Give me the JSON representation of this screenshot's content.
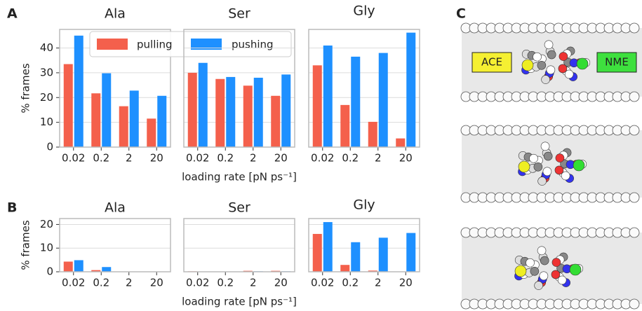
{
  "chart_data": [
    {
      "type": "bar",
      "panel": "A",
      "title": "Ala",
      "ylabel": "% frames",
      "categories": [
        "0.02",
        "0.2",
        "2",
        "20"
      ],
      "series": [
        {
          "name": "pulling",
          "color": "#f4604c",
          "values": [
            33.5,
            21.7,
            16.5,
            11.5
          ]
        },
        {
          "name": "pushing",
          "color": "#1e90ff",
          "values": [
            45,
            29.8,
            22.8,
            20.7
          ]
        }
      ],
      "ylim": [
        0,
        47.5
      ],
      "yticks": [
        0,
        10,
        20,
        30,
        40
      ],
      "grid": true,
      "legend": "upper center"
    },
    {
      "type": "bar",
      "title": "Ser",
      "xlabel": "loading rate [pN ps⁻¹]",
      "categories": [
        "0.02",
        "0.2",
        "2",
        "20"
      ],
      "series": [
        {
          "name": "pulling",
          "color": "#f4604c",
          "values": [
            30,
            27.5,
            24.8,
            20.7
          ]
        },
        {
          "name": "pushing",
          "color": "#1e90ff",
          "values": [
            34,
            28.3,
            28,
            29.3
          ]
        }
      ],
      "ylim": [
        0,
        47.5
      ],
      "yticks": [
        0,
        10,
        20,
        30,
        40
      ],
      "grid": true,
      "show_ytick_labels": false
    },
    {
      "type": "bar",
      "title": "Gly",
      "categories": [
        "0.02",
        "0.2",
        "2",
        "20"
      ],
      "series": [
        {
          "name": "pulling",
          "color": "#f4604c",
          "values": [
            33,
            17,
            10.2,
            3.5
          ]
        },
        {
          "name": "pushing",
          "color": "#1e90ff",
          "values": [
            41,
            36.5,
            38,
            46.2
          ]
        }
      ],
      "ylim": [
        0,
        47.5
      ],
      "yticks": [
        0,
        10,
        20,
        30,
        40
      ],
      "grid": true,
      "show_ytick_labels": false
    },
    {
      "type": "bar",
      "panel": "B",
      "title": "Ala",
      "ylabel": "% frames",
      "categories": [
        "0.02",
        "0.2",
        "2",
        "20"
      ],
      "series": [
        {
          "name": "pulling",
          "color": "#f4604c",
          "values": [
            4.3,
            0.7,
            0,
            0
          ]
        },
        {
          "name": "pushing",
          "color": "#1e90ff",
          "values": [
            4.9,
            2.0,
            0,
            0
          ]
        }
      ],
      "ylim": [
        0,
        22.5
      ],
      "yticks": [
        0,
        10,
        20
      ],
      "grid": true
    },
    {
      "type": "bar",
      "title": "Ser",
      "xlabel": "loading rate [pN ps⁻¹]",
      "categories": [
        "0.02",
        "0.2",
        "2",
        "20"
      ],
      "series": [
        {
          "name": "pulling",
          "color": "#f4604c",
          "values": [
            0.2,
            0.1,
            0.4,
            0.4
          ]
        },
        {
          "name": "pushing",
          "color": "#1e90ff",
          "values": [
            0.1,
            0.1,
            0.2,
            0.2
          ]
        }
      ],
      "ylim": [
        0,
        22.5
      ],
      "yticks": [
        0,
        10,
        20
      ],
      "grid": true,
      "show_ytick_labels": false
    },
    {
      "type": "bar",
      "title": "Gly",
      "categories": [
        "0.02",
        "0.2",
        "2",
        "20"
      ],
      "series": [
        {
          "name": "pulling",
          "color": "#f4604c",
          "values": [
            16,
            2.9,
            0.5,
            0
          ]
        },
        {
          "name": "pushing",
          "color": "#1e90ff",
          "values": [
            21,
            12.5,
            14.4,
            16.4
          ]
        }
      ],
      "ylim": [
        0,
        22.5
      ],
      "yticks": [
        0,
        10,
        20
      ],
      "grid": true,
      "show_ytick_labels": false
    }
  ],
  "panel_c": {
    "label": "C",
    "annotations": [
      "ACE",
      "NME"
    ]
  }
}
